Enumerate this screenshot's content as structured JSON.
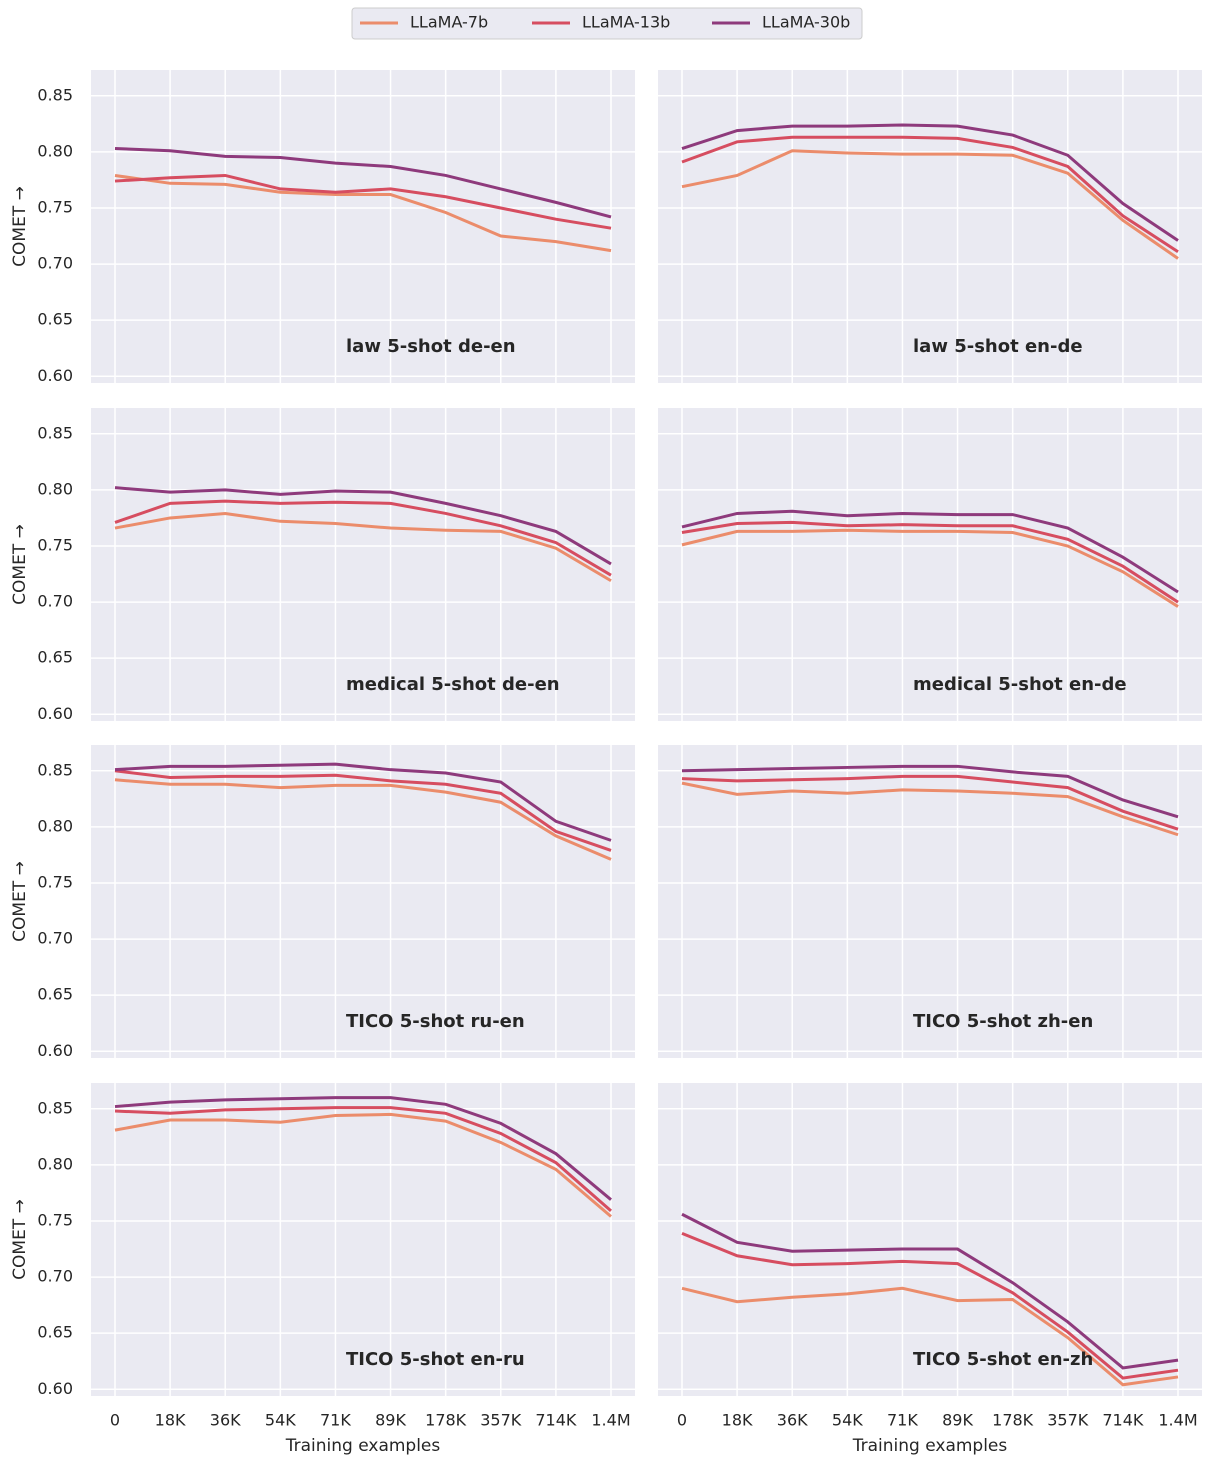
{
  "chart_data": [
    {
      "type": "line",
      "title": "law 5-shot de-en",
      "ylabel": "COMET →",
      "categories": [
        "0",
        "18K",
        "36K",
        "54K",
        "71K",
        "89K",
        "178K",
        "357K",
        "714K",
        "1.4M"
      ],
      "ylim": [
        0.594,
        0.873
      ],
      "yticks": [
        {
          "value": 0.6,
          "label": "0.60"
        },
        0.65,
        {
          "value": 0.7,
          "label": "0.70"
        },
        0.75,
        {
          "value": 0.8,
          "label": "0.80"
        },
        0.85
      ],
      "grid": true,
      "series": [
        {
          "name": "LLaMA-7b",
          "color": "#eb8c6b",
          "values": [
            0.779,
            0.772,
            0.771,
            0.764,
            0.762,
            0.762,
            0.746,
            0.725,
            0.72,
            0.712
          ]
        },
        {
          "name": "LLaMA-13b",
          "color": "#d64d60",
          "values": [
            0.774,
            0.777,
            0.779,
            0.767,
            0.764,
            0.767,
            0.76,
            0.75,
            0.74,
            0.732
          ]
        },
        {
          "name": "LLaMA-30b",
          "color": "#8e3a7c",
          "values": [
            0.803,
            0.801,
            0.796,
            0.795,
            0.79,
            0.787,
            0.779,
            0.767,
            0.755,
            0.742
          ]
        }
      ]
    },
    {
      "type": "line",
      "title": "law 5-shot en-de",
      "categories": [
        "0",
        "18K",
        "36K",
        "54K",
        "71K",
        "89K",
        "178K",
        "357K",
        "714K",
        "1.4M"
      ],
      "ylim": [
        0.594,
        0.873
      ],
      "yticks": [
        {
          "value": 0.6,
          "label": "0.60"
        },
        0.65,
        {
          "value": 0.7,
          "label": "0.70"
        },
        0.75,
        {
          "value": 0.8,
          "label": "0.80"
        },
        0.85
      ],
      "grid": true,
      "series": [
        {
          "name": "LLaMA-7b",
          "color": "#eb8c6b",
          "values": [
            0.769,
            0.779,
            0.801,
            0.799,
            0.798,
            0.798,
            0.797,
            0.781,
            0.739,
            0.705
          ]
        },
        {
          "name": "LLaMA-13b",
          "color": "#d64d60",
          "values": [
            0.791,
            0.809,
            0.813,
            0.813,
            0.813,
            0.812,
            0.804,
            0.787,
            0.743,
            0.711
          ]
        },
        {
          "name": "LLaMA-30b",
          "color": "#8e3a7c",
          "values": [
            0.803,
            0.819,
            0.823,
            0.823,
            0.824,
            0.823,
            0.815,
            0.797,
            0.754,
            0.721
          ]
        }
      ]
    },
    {
      "type": "line",
      "title": "medical 5-shot de-en",
      "ylabel": "COMET →",
      "categories": [
        "0",
        "18K",
        "36K",
        "54K",
        "71K",
        "89K",
        "178K",
        "357K",
        "714K",
        "1.4M"
      ],
      "ylim": [
        0.594,
        0.873
      ],
      "yticks": [
        {
          "value": 0.6,
          "label": "0.60"
        },
        0.65,
        {
          "value": 0.7,
          "label": "0.70"
        },
        0.75,
        {
          "value": 0.8,
          "label": "0.80"
        },
        0.85
      ],
      "grid": true,
      "series": [
        {
          "name": "LLaMA-7b",
          "color": "#eb8c6b",
          "values": [
            0.766,
            0.775,
            0.779,
            0.772,
            0.77,
            0.766,
            0.764,
            0.763,
            0.748,
            0.719
          ]
        },
        {
          "name": "LLaMA-13b",
          "color": "#d64d60",
          "values": [
            0.771,
            0.788,
            0.79,
            0.788,
            0.789,
            0.788,
            0.779,
            0.768,
            0.753,
            0.724
          ]
        },
        {
          "name": "LLaMA-30b",
          "color": "#8e3a7c",
          "values": [
            0.802,
            0.798,
            0.8,
            0.796,
            0.799,
            0.798,
            0.788,
            0.777,
            0.763,
            0.734
          ]
        }
      ]
    },
    {
      "type": "line",
      "title": "medical 5-shot en-de",
      "categories": [
        "0",
        "18K",
        "36K",
        "54K",
        "71K",
        "89K",
        "178K",
        "357K",
        "714K",
        "1.4M"
      ],
      "ylim": [
        0.594,
        0.873
      ],
      "yticks": [
        {
          "value": 0.6,
          "label": "0.60"
        },
        0.65,
        {
          "value": 0.7,
          "label": "0.70"
        },
        0.75,
        {
          "value": 0.8,
          "label": "0.80"
        },
        0.85
      ],
      "grid": true,
      "series": [
        {
          "name": "LLaMA-7b",
          "color": "#eb8c6b",
          "values": [
            0.751,
            0.763,
            0.763,
            0.764,
            0.763,
            0.763,
            0.762,
            0.75,
            0.727,
            0.696
          ]
        },
        {
          "name": "LLaMA-13b",
          "color": "#d64d60",
          "values": [
            0.762,
            0.77,
            0.771,
            0.768,
            0.769,
            0.768,
            0.768,
            0.756,
            0.732,
            0.7
          ]
        },
        {
          "name": "LLaMA-30b",
          "color": "#8e3a7c",
          "values": [
            0.767,
            0.779,
            0.781,
            0.777,
            0.779,
            0.778,
            0.778,
            0.766,
            0.74,
            0.709
          ]
        }
      ]
    },
    {
      "type": "line",
      "title": "TICO 5-shot ru-en",
      "ylabel": "COMET →",
      "categories": [
        "0",
        "18K",
        "36K",
        "54K",
        "71K",
        "89K",
        "178K",
        "357K",
        "714K",
        "1.4M"
      ],
      "ylim": [
        0.594,
        0.873
      ],
      "yticks": [
        {
          "value": 0.6,
          "label": "0.60"
        },
        0.65,
        {
          "value": 0.7,
          "label": "0.70"
        },
        0.75,
        {
          "value": 0.8,
          "label": "0.80"
        },
        0.85
      ],
      "grid": true,
      "series": [
        {
          "name": "LLaMA-7b",
          "color": "#eb8c6b",
          "values": [
            0.842,
            0.838,
            0.838,
            0.835,
            0.837,
            0.837,
            0.831,
            0.822,
            0.792,
            0.771
          ]
        },
        {
          "name": "LLaMA-13b",
          "color": "#d64d60",
          "values": [
            0.85,
            0.844,
            0.845,
            0.845,
            0.846,
            0.841,
            0.838,
            0.83,
            0.796,
            0.779
          ]
        },
        {
          "name": "LLaMA-30b",
          "color": "#8e3a7c",
          "values": [
            0.851,
            0.854,
            0.854,
            0.855,
            0.856,
            0.851,
            0.848,
            0.84,
            0.805,
            0.788
          ]
        }
      ]
    },
    {
      "type": "line",
      "title": "TICO 5-shot zh-en",
      "categories": [
        "0",
        "18K",
        "36K",
        "54K",
        "71K",
        "89K",
        "178K",
        "357K",
        "714K",
        "1.4M"
      ],
      "ylim": [
        0.594,
        0.873
      ],
      "yticks": [
        {
          "value": 0.6,
          "label": "0.60"
        },
        0.65,
        {
          "value": 0.7,
          "label": "0.70"
        },
        0.75,
        {
          "value": 0.8,
          "label": "0.80"
        },
        0.85
      ],
      "grid": true,
      "series": [
        {
          "name": "LLaMA-7b",
          "color": "#eb8c6b",
          "values": [
            0.839,
            0.829,
            0.832,
            0.83,
            0.833,
            0.832,
            0.83,
            0.827,
            0.809,
            0.793
          ]
        },
        {
          "name": "LLaMA-13b",
          "color": "#d64d60",
          "values": [
            0.843,
            0.841,
            0.842,
            0.843,
            0.845,
            0.845,
            0.84,
            0.835,
            0.814,
            0.798
          ]
        },
        {
          "name": "LLaMA-30b",
          "color": "#8e3a7c",
          "values": [
            0.85,
            0.851,
            0.852,
            0.853,
            0.854,
            0.854,
            0.849,
            0.845,
            0.824,
            0.809
          ]
        }
      ]
    },
    {
      "type": "line",
      "title": "TICO 5-shot en-ru",
      "ylabel": "COMET →",
      "xlabel": "Training examples",
      "categories": [
        "0",
        "18K",
        "36K",
        "54K",
        "71K",
        "89K",
        "178K",
        "357K",
        "714K",
        "1.4M"
      ],
      "ylim": [
        0.594,
        0.873
      ],
      "yticks": [
        {
          "value": 0.6,
          "label": "0.60"
        },
        0.65,
        {
          "value": 0.7,
          "label": "0.70"
        },
        0.75,
        {
          "value": 0.8,
          "label": "0.80"
        },
        0.85
      ],
      "grid": true,
      "series": [
        {
          "name": "LLaMA-7b",
          "color": "#eb8c6b",
          "values": [
            0.831,
            0.84,
            0.84,
            0.838,
            0.844,
            0.845,
            0.839,
            0.82,
            0.796,
            0.754
          ]
        },
        {
          "name": "LLaMA-13b",
          "color": "#d64d60",
          "values": [
            0.848,
            0.846,
            0.849,
            0.85,
            0.851,
            0.851,
            0.846,
            0.828,
            0.802,
            0.759
          ]
        },
        {
          "name": "LLaMA-30b",
          "color": "#8e3a7c",
          "values": [
            0.852,
            0.856,
            0.858,
            0.859,
            0.86,
            0.86,
            0.854,
            0.837,
            0.81,
            0.769
          ]
        }
      ]
    },
    {
      "type": "line",
      "title": "TICO 5-shot en-zh",
      "xlabel": "Training examples",
      "categories": [
        "0",
        "18K",
        "36K",
        "54K",
        "71K",
        "89K",
        "178K",
        "357K",
        "714K",
        "1.4M"
      ],
      "ylim": [
        0.594,
        0.873
      ],
      "yticks": [
        {
          "value": 0.6,
          "label": "0.60"
        },
        0.65,
        {
          "value": 0.7,
          "label": "0.70"
        },
        0.75,
        {
          "value": 0.8,
          "label": "0.80"
        },
        0.85
      ],
      "grid": true,
      "series": [
        {
          "name": "LLaMA-7b",
          "color": "#eb8c6b",
          "values": [
            0.69,
            0.678,
            0.682,
            0.685,
            0.69,
            0.679,
            0.68,
            0.646,
            0.604,
            0.611
          ]
        },
        {
          "name": "LLaMA-13b",
          "color": "#d64d60",
          "values": [
            0.739,
            0.719,
            0.711,
            0.712,
            0.714,
            0.712,
            0.686,
            0.651,
            0.61,
            0.617
          ]
        },
        {
          "name": "LLaMA-30b",
          "color": "#8e3a7c",
          "values": [
            0.756,
            0.731,
            0.723,
            0.724,
            0.725,
            0.725,
            0.695,
            0.66,
            0.619,
            0.626
          ]
        }
      ]
    }
  ]
}
